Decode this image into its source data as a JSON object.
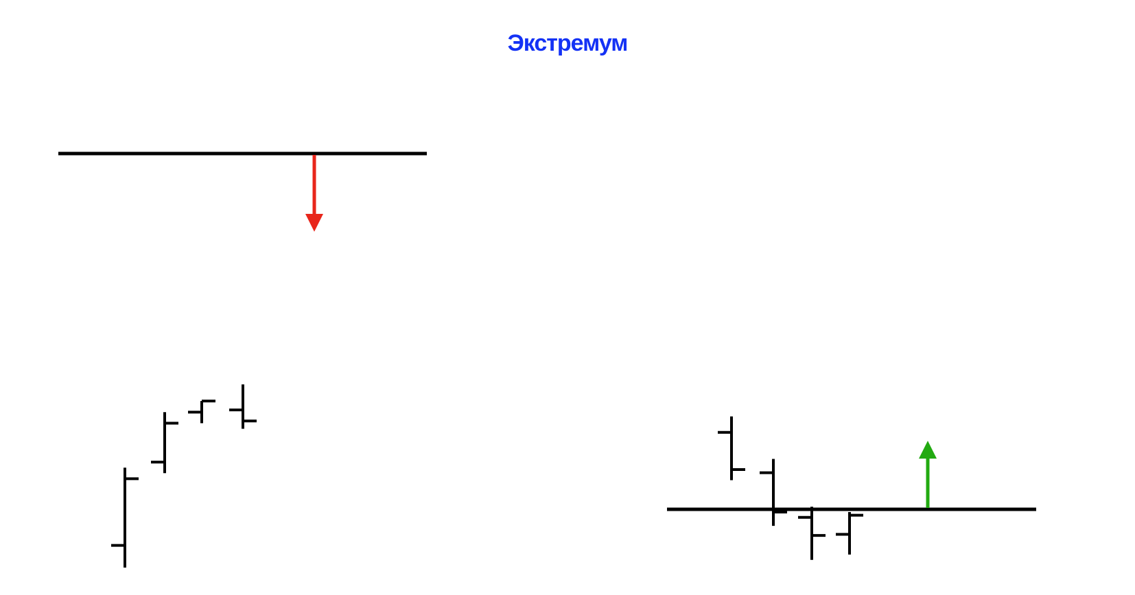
{
  "title": "Экстремум",
  "colors": {
    "title": "#1432f5",
    "bars": "#000000",
    "down_arrow": "#e8261b",
    "up_arrow": "#22aa11"
  },
  "panels": [
    {
      "name": "resistance-extremum",
      "level_line": "resistance",
      "arrow": {
        "direction": "down",
        "icon": "arrow-down-icon"
      },
      "bars": [
        {
          "high": 9.0,
          "low": 0.0,
          "open": 2.0,
          "close": 8.0
        },
        {
          "high": 14.0,
          "low": 8.5,
          "open": 9.5,
          "close": 13.0
        },
        {
          "high": 15.0,
          "low": 13.0,
          "open": 14.0,
          "close": 15.0
        },
        {
          "high": 16.5,
          "low": 12.5,
          "open": 14.2,
          "close": 13.2
        }
      ]
    },
    {
      "name": "support-extremum",
      "level_line": "support",
      "arrow": {
        "direction": "up",
        "icon": "arrow-up-icon"
      },
      "bars": [
        {
          "high": 17.0,
          "low": 11.0,
          "open": 15.5,
          "close": 12.0
        },
        {
          "high": 13.0,
          "low": 6.7,
          "open": 11.7,
          "close": 8.0
        },
        {
          "high": 8.5,
          "low": 3.5,
          "open": 7.5,
          "close": 5.8
        },
        {
          "high": 8.0,
          "low": 4.0,
          "open": 5.9,
          "close": 7.7
        }
      ]
    }
  ]
}
